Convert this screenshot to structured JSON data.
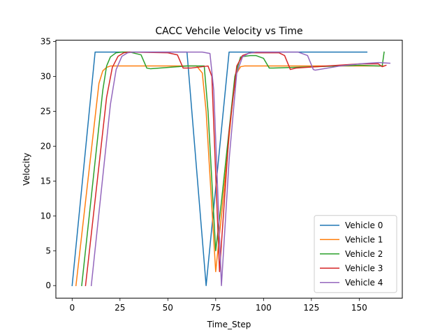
{
  "chart_data": {
    "type": "line",
    "title": "CACC Vehcile Velocity vs Time",
    "xlabel": "Time_Step",
    "ylabel": "Velocity",
    "xlim": [
      -8.5,
      172.5
    ],
    "ylim": [
      -1.8,
      35.2
    ],
    "xticks": [
      0,
      25,
      50,
      75,
      100,
      125,
      150
    ],
    "yticks": [
      0,
      5,
      10,
      15,
      20,
      25,
      30,
      35
    ],
    "grid": false,
    "legend_position": "lower-right",
    "series": [
      {
        "name": "Vehicle 0",
        "color": "#1f77b4",
        "points": [
          [
            0,
            0
          ],
          [
            12,
            33.5
          ],
          [
            60,
            33.5
          ],
          [
            70,
            0
          ],
          [
            82,
            33.5
          ],
          [
            154,
            33.5
          ]
        ]
      },
      {
        "name": "Vehicle 1",
        "color": "#ff7f0e",
        "points": [
          [
            2,
            0
          ],
          [
            14,
            29
          ],
          [
            16,
            30.8
          ],
          [
            18,
            31.3
          ],
          [
            20,
            31.5
          ],
          [
            65,
            31.5
          ],
          [
            68,
            30.5
          ],
          [
            70,
            25
          ],
          [
            75,
            2
          ],
          [
            78,
            10
          ],
          [
            84,
            27
          ],
          [
            86,
            30.5
          ],
          [
            88,
            31.4
          ],
          [
            90,
            31.5
          ],
          [
            162,
            31.5
          ],
          [
            163,
            31.5
          ]
        ]
      },
      {
        "name": "Vehicle 2",
        "color": "#2ca02c",
        "points": [
          [
            5,
            0
          ],
          [
            16,
            28
          ],
          [
            18,
            31.5
          ],
          [
            20,
            32.8
          ],
          [
            23,
            33.4
          ],
          [
            26,
            33.5
          ],
          [
            30,
            33.5
          ],
          [
            36,
            33.1
          ],
          [
            39,
            31.2
          ],
          [
            41,
            31.1
          ],
          [
            60,
            31.5
          ],
          [
            69,
            31.5
          ],
          [
            71,
            25
          ],
          [
            75,
            5
          ],
          [
            78,
            12
          ],
          [
            85,
            30
          ],
          [
            88,
            32.8
          ],
          [
            93,
            33
          ],
          [
            96,
            33
          ],
          [
            100,
            32.6
          ],
          [
            103,
            31.2
          ],
          [
            105,
            31.2
          ],
          [
            150,
            31.6
          ],
          [
            160,
            31.5
          ],
          [
            162,
            31.5
          ],
          [
            163,
            33.5
          ]
        ]
      },
      {
        "name": "Vehicle 3",
        "color": "#d62728",
        "points": [
          [
            7,
            0
          ],
          [
            18,
            27
          ],
          [
            21,
            31.3
          ],
          [
            24,
            32.9
          ],
          [
            27,
            33.4
          ],
          [
            30,
            33.5
          ],
          [
            50,
            33.4
          ],
          [
            55,
            33.1
          ],
          [
            58,
            31.2
          ],
          [
            62,
            31.2
          ],
          [
            71,
            31.5
          ],
          [
            73,
            30
          ],
          [
            77,
            2
          ],
          [
            82,
            22
          ],
          [
            86,
            31.5
          ],
          [
            89,
            33
          ],
          [
            93,
            33.4
          ],
          [
            108,
            33.4
          ],
          [
            111,
            33
          ],
          [
            114,
            31
          ],
          [
            117,
            31.2
          ],
          [
            150,
            31.8
          ],
          [
            160,
            31.8
          ],
          [
            162,
            31.4
          ],
          [
            164,
            31.6
          ]
        ]
      },
      {
        "name": "Vehicle 4",
        "color": "#9467bd",
        "points": [
          [
            10,
            0
          ],
          [
            20,
            26
          ],
          [
            23,
            31
          ],
          [
            26,
            32.9
          ],
          [
            29,
            33.4
          ],
          [
            32,
            33.5
          ],
          [
            68,
            33.5
          ],
          [
            72,
            33.3
          ],
          [
            74,
            28
          ],
          [
            78,
            0
          ],
          [
            82,
            18
          ],
          [
            86,
            30.5
          ],
          [
            89,
            32.8
          ],
          [
            92,
            33.3
          ],
          [
            96,
            33.5
          ],
          [
            118,
            33.5
          ],
          [
            123,
            33
          ],
          [
            126,
            31
          ],
          [
            127,
            30.9
          ],
          [
            140,
            31.5
          ],
          [
            150,
            31.8
          ],
          [
            160,
            32
          ],
          [
            166,
            31.9
          ]
        ]
      }
    ]
  }
}
